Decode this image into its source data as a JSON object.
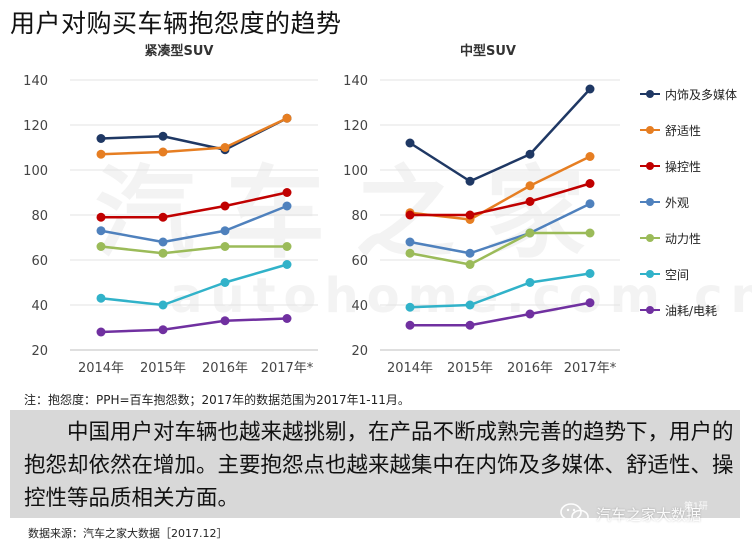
{
  "title": "用户对购买车辆抱怨度的趋势",
  "watermark": "汽车之家",
  "watermark_sub": "autohome.com.cn",
  "note": "注：抱怨度：PPH=百车抱怨数；2017年的数据范围为2017年1-11月。",
  "summary": "中国用户对车辆也越来越挑剔，在产品不断成熟完善的趋势下，用户的抱怨却依然在增加。主要抱怨点也越来越集中在内饰及多媒体、舒适性、操控性等品质相关方面。",
  "source": "数据来源：汽车之家大数据［2017.12］",
  "brand": {
    "name": "汽车之家大数据",
    "sub": "第1研"
  },
  "chart_data": [
    {
      "type": "line",
      "title": "紧凑型SUV",
      "categories": [
        "2014年",
        "2015年",
        "2016年",
        "2017年*"
      ],
      "ylim": [
        20,
        140
      ],
      "yticks": [
        20,
        40,
        60,
        80,
        100,
        120,
        140
      ],
      "grid": true,
      "series": [
        {
          "name": "内饰及多媒体",
          "color": "#1f3864",
          "values": [
            114,
            115,
            109,
            123
          ]
        },
        {
          "name": "舒适性",
          "color": "#e67e22",
          "values": [
            107,
            108,
            110,
            123
          ]
        },
        {
          "name": "操控性",
          "color": "#c00000",
          "values": [
            79,
            79,
            84,
            90
          ]
        },
        {
          "name": "外观",
          "color": "#4f81bd",
          "values": [
            73,
            68,
            73,
            84
          ]
        },
        {
          "name": "动力性",
          "color": "#9bbb59",
          "values": [
            66,
            63,
            66,
            66
          ]
        },
        {
          "name": "空间",
          "color": "#31b2c9",
          "values": [
            43,
            40,
            50,
            58
          ]
        },
        {
          "name": "油耗/电耗",
          "color": "#7030a0",
          "values": [
            28,
            29,
            33,
            34
          ]
        }
      ]
    },
    {
      "type": "line",
      "title": "中型SUV",
      "categories": [
        "2014年",
        "2015年",
        "2016年",
        "2017年*"
      ],
      "ylim": [
        20,
        140
      ],
      "yticks": [
        20,
        40,
        60,
        80,
        100,
        120,
        140
      ],
      "grid": true,
      "series": [
        {
          "name": "内饰及多媒体",
          "color": "#1f3864",
          "values": [
            112,
            95,
            107,
            136
          ]
        },
        {
          "name": "舒适性",
          "color": "#e67e22",
          "values": [
            81,
            78,
            93,
            106
          ]
        },
        {
          "name": "操控性",
          "color": "#c00000",
          "values": [
            80,
            80,
            86,
            94
          ]
        },
        {
          "name": "外观",
          "color": "#4f81bd",
          "values": [
            68,
            63,
            72,
            85
          ]
        },
        {
          "name": "动力性",
          "color": "#9bbb59",
          "values": [
            63,
            58,
            72,
            72
          ]
        },
        {
          "name": "空间",
          "color": "#31b2c9",
          "values": [
            39,
            40,
            50,
            54
          ]
        },
        {
          "name": "油耗/电耗",
          "color": "#7030a0",
          "values": [
            31,
            31,
            36,
            41
          ]
        }
      ]
    }
  ],
  "legend": [
    {
      "label": "内饰及多媒体",
      "color": "#1f3864"
    },
    {
      "label": "舒适性",
      "color": "#e67e22"
    },
    {
      "label": "操控性",
      "color": "#c00000"
    },
    {
      "label": "外观",
      "color": "#4f81bd"
    },
    {
      "label": "动力性",
      "color": "#9bbb59"
    },
    {
      "label": "空间",
      "color": "#31b2c9"
    },
    {
      "label": "油耗/电耗",
      "color": "#7030a0"
    }
  ]
}
